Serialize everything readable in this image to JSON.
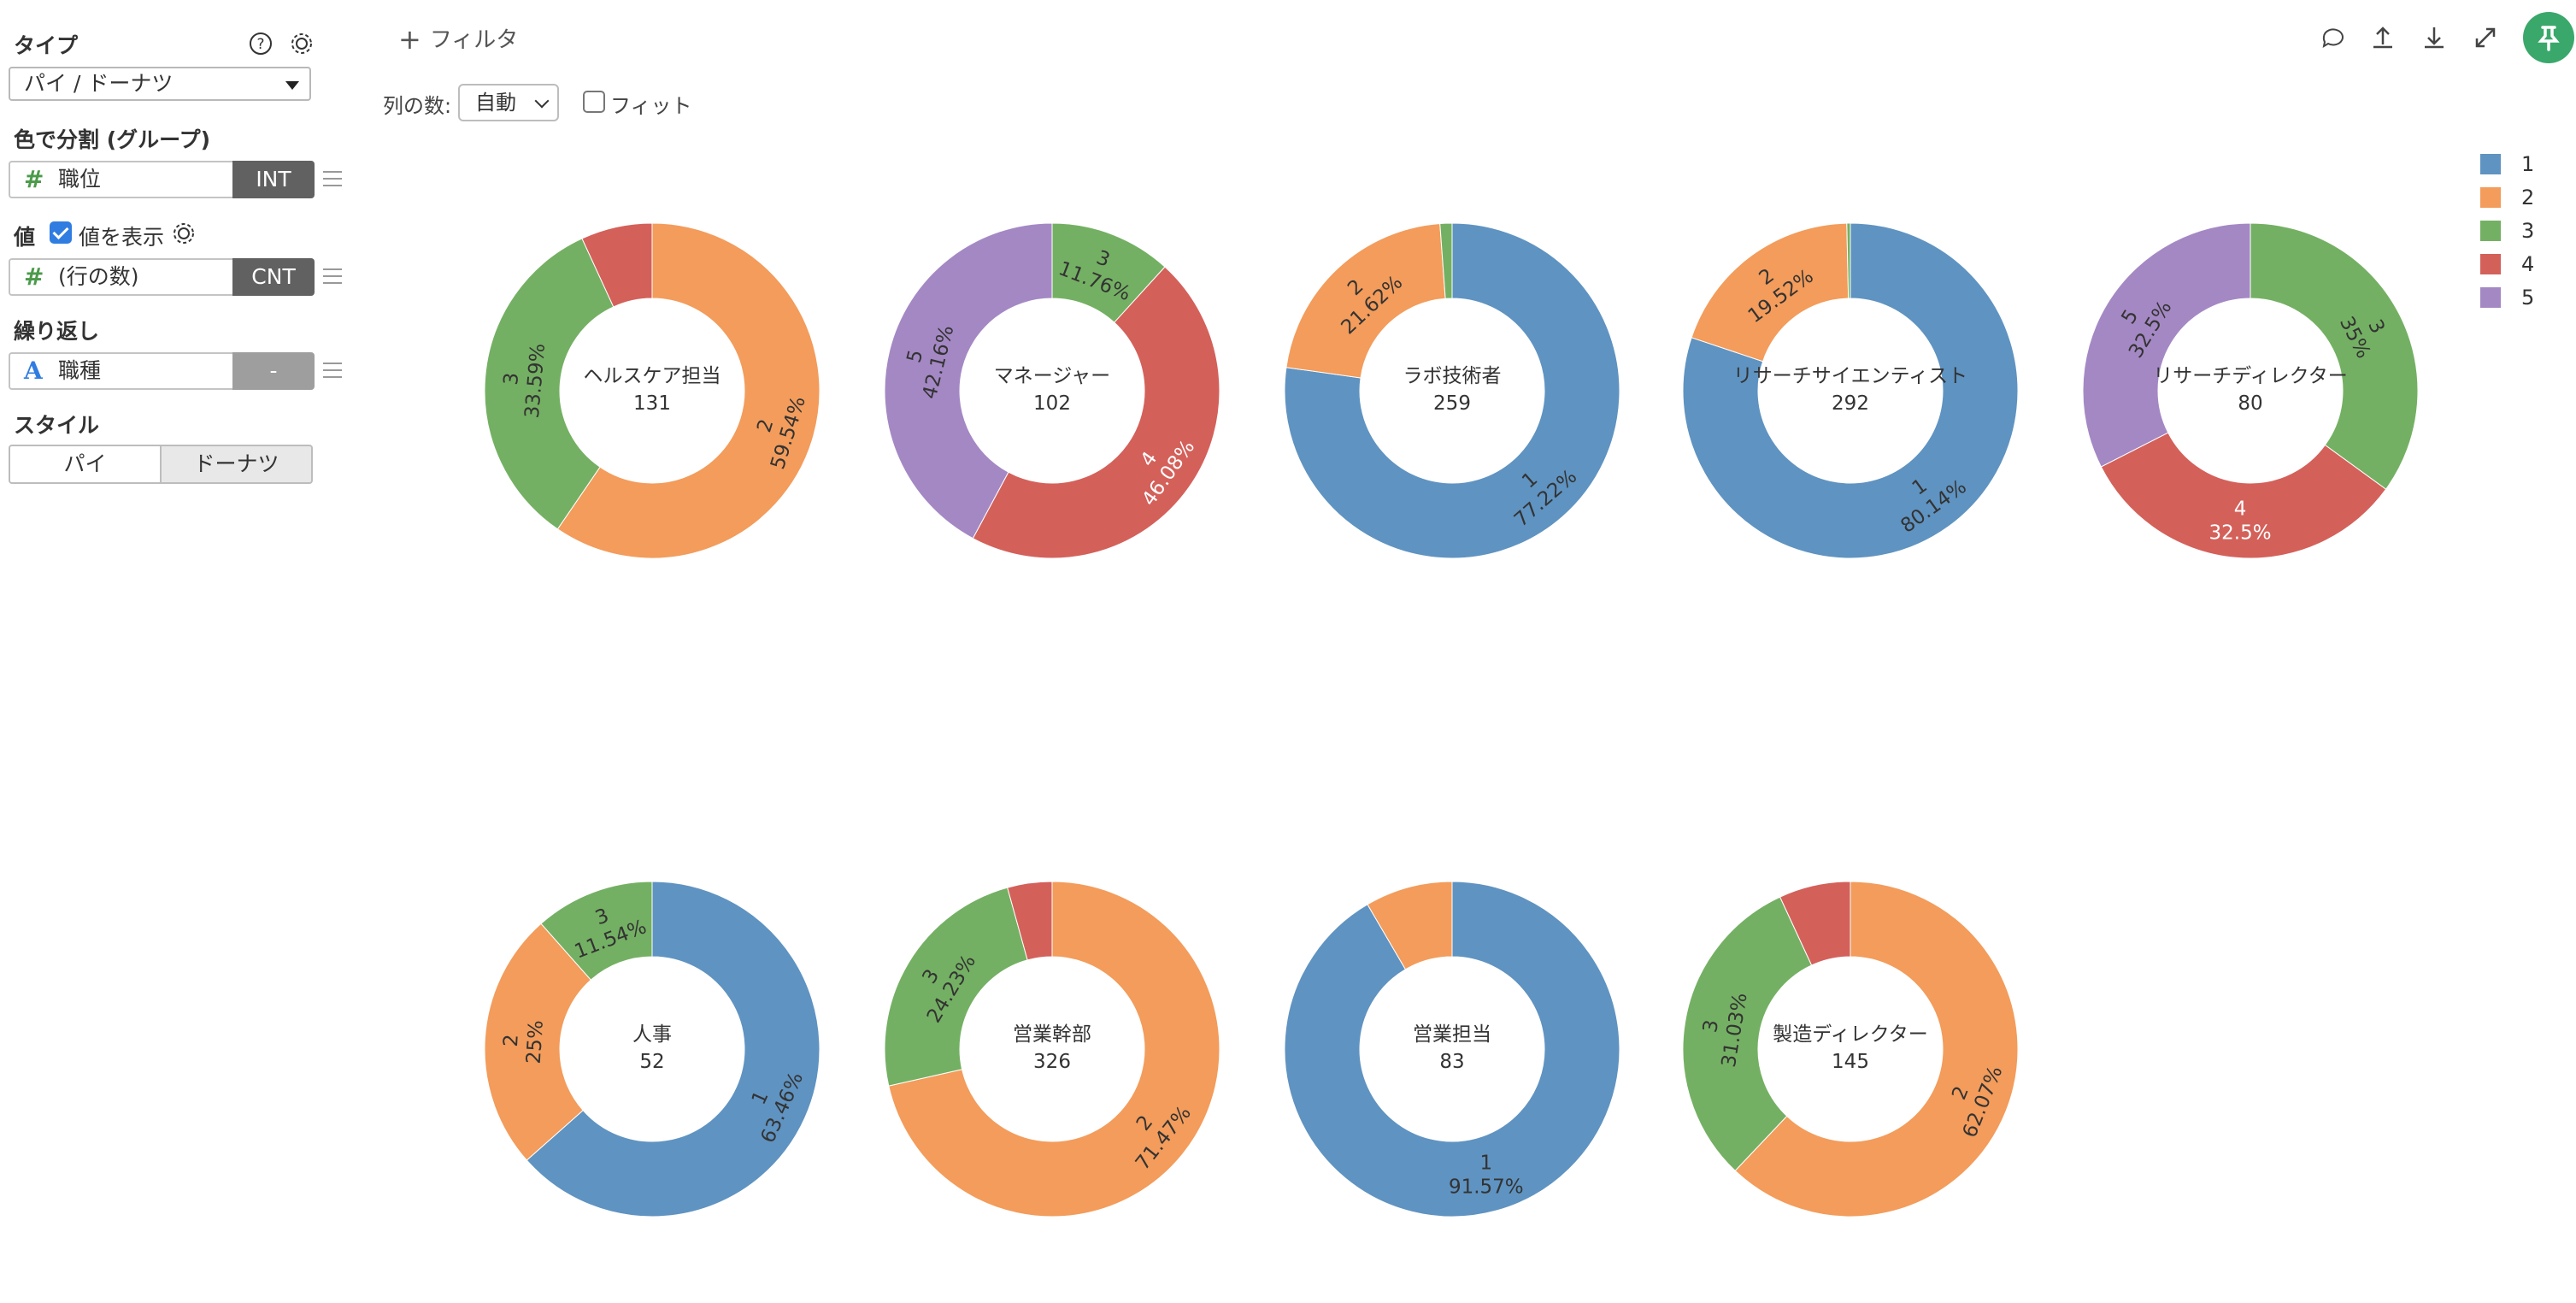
{
  "sidebar": {
    "type_title": "タイプ",
    "type_value": "パイ / ドーナツ",
    "color_title": "色で分割 (グループ)",
    "color_field": {
      "icon": "#",
      "name": "職位",
      "type": "INT"
    },
    "value_title": "値",
    "show_values_label": "値を表示",
    "show_values_checked": true,
    "value_field": {
      "icon": "#",
      "name": "(行の数)",
      "type": "CNT"
    },
    "repeat_title": "繰り返し",
    "repeat_field": {
      "icon": "A",
      "name": "職種",
      "type": "-"
    },
    "style_title": "スタイル",
    "style_options": [
      "パイ",
      "ドーナツ"
    ],
    "style_selected": "ドーナツ"
  },
  "toolbar": {
    "filter_label": "フィルタ",
    "columns_label": "列の数:",
    "columns_value": "自動",
    "fit_label": "フィット",
    "fit_checked": false
  },
  "colors": {
    "1": "#5f93c1",
    "2": "#f39c5b",
    "3": "#74b063",
    "4": "#d4605a",
    "5": "#a488c4",
    "brand_green": "#3aa86b",
    "field_type_dark": "#616161",
    "field_type_light": "#9e9e9e"
  },
  "legend": [
    {
      "key": "1",
      "label": "1"
    },
    {
      "key": "2",
      "label": "2"
    },
    {
      "key": "3",
      "label": "3"
    },
    {
      "key": "4",
      "label": "4"
    },
    {
      "key": "5",
      "label": "5"
    }
  ],
  "chart_data": [
    {
      "type": "pie",
      "title": "ヘルスケア担当",
      "total": "131",
      "slices": [
        {
          "key": "2",
          "value": 59.54,
          "label_pct": "59.54%"
        },
        {
          "key": "3",
          "value": 33.59,
          "label_pct": "33.59%"
        },
        {
          "key": "4",
          "value": 6.87,
          "label_pct": ""
        }
      ]
    },
    {
      "type": "pie",
      "title": "マネージャー",
      "total": "102",
      "slices": [
        {
          "key": "3",
          "value": 11.76,
          "label_pct": "11.76%"
        },
        {
          "key": "4",
          "value": 46.08,
          "label_pct": "46.08%"
        },
        {
          "key": "5",
          "value": 42.16,
          "label_pct": "42.16%"
        }
      ]
    },
    {
      "type": "pie",
      "title": "ラボ技術者",
      "total": "259",
      "slices": [
        {
          "key": "1",
          "value": 77.22,
          "label_pct": "77.22%"
        },
        {
          "key": "2",
          "value": 21.62,
          "label_pct": "21.62%"
        },
        {
          "key": "3",
          "value": 1.16,
          "label_pct": ""
        }
      ]
    },
    {
      "type": "pie",
      "title": "リサーチサイエンティスト",
      "total": "292",
      "slices": [
        {
          "key": "1",
          "value": 80.14,
          "label_pct": "80.14%"
        },
        {
          "key": "2",
          "value": 19.52,
          "label_pct": "19.52%"
        },
        {
          "key": "3",
          "value": 0.34,
          "label_pct": ""
        }
      ]
    },
    {
      "type": "pie",
      "title": "リサーチディレクター",
      "total": "80",
      "slices": [
        {
          "key": "3",
          "value": 35.0,
          "label_pct": "35%"
        },
        {
          "key": "4",
          "value": 32.5,
          "label_pct": "32.5%"
        },
        {
          "key": "5",
          "value": 32.5,
          "label_pct": "32.5%"
        }
      ]
    },
    {
      "type": "pie",
      "title": "人事",
      "total": "52",
      "slices": [
        {
          "key": "1",
          "value": 63.46,
          "label_pct": "63.46%"
        },
        {
          "key": "2",
          "value": 25.0,
          "label_pct": "25%"
        },
        {
          "key": "3",
          "value": 11.54,
          "label_pct": "11.54%"
        }
      ]
    },
    {
      "type": "pie",
      "title": "営業幹部",
      "total": "326",
      "slices": [
        {
          "key": "2",
          "value": 71.47,
          "label_pct": "71.47%"
        },
        {
          "key": "3",
          "value": 24.23,
          "label_pct": "24.23%"
        },
        {
          "key": "4",
          "value": 4.3,
          "label_pct": ""
        }
      ]
    },
    {
      "type": "pie",
      "title": "営業担当",
      "total": "83",
      "slices": [
        {
          "key": "1",
          "value": 91.57,
          "label_pct": "91.57%"
        },
        {
          "key": "2",
          "value": 8.43,
          "label_pct": ""
        }
      ]
    },
    {
      "type": "pie",
      "title": "製造ディレクター",
      "total": "145",
      "slices": [
        {
          "key": "2",
          "value": 62.07,
          "label_pct": "62.07%"
        },
        {
          "key": "3",
          "value": 31.03,
          "label_pct": "31.03%"
        },
        {
          "key": "4",
          "value": 6.9,
          "label_pct": ""
        }
      ]
    }
  ]
}
